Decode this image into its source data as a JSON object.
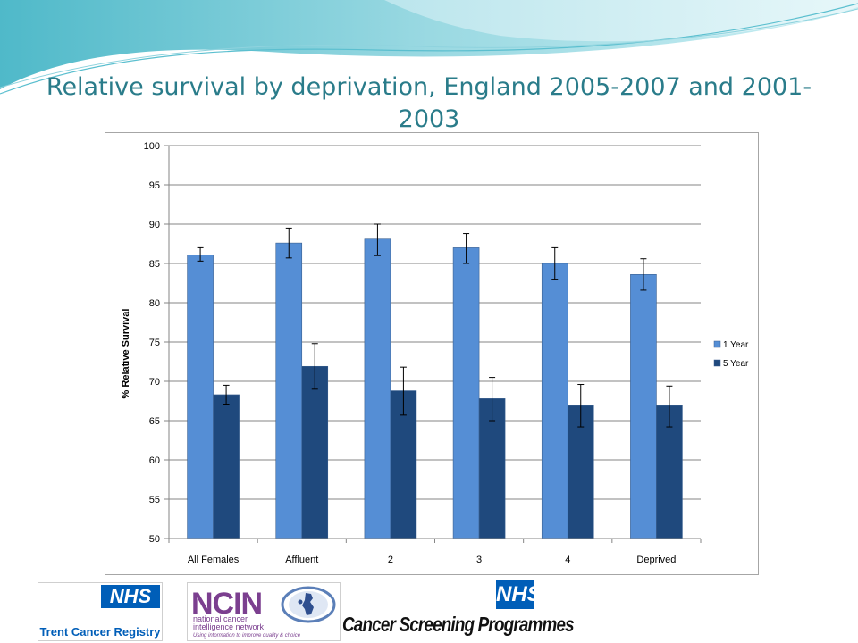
{
  "slide": {
    "title": "Relative survival by deprivation, England 2005-2007 and 2001-2003"
  },
  "logos": {
    "trent_nhs": "NHS",
    "trent_label": "Trent Cancer Registry",
    "ncin_name": "NCIN",
    "ncin_sub1": "national cancer",
    "ncin_sub2": "intelligence network",
    "ncin_tagline": "Using information to improve quality & choice",
    "csp_nhs": "NHS",
    "csp_label": "Cancer Screening Programmes"
  },
  "colors": {
    "title": "#2a7c8a",
    "series_1": "#558ed5",
    "series_2": "#1f497d"
  },
  "chart_data": {
    "type": "bar",
    "title": "",
    "xlabel": "",
    "ylabel": "% Relative Survival",
    "ylim": [
      50,
      100
    ],
    "yticks": [
      50,
      55,
      60,
      65,
      70,
      75,
      80,
      85,
      90,
      95,
      100
    ],
    "grid": true,
    "legend_position": "right",
    "categories": [
      "All Females",
      "Affluent",
      "2",
      "3",
      "4",
      "Deprived"
    ],
    "series": [
      {
        "name": "1 Year",
        "color": "#558ed5",
        "values": [
          86.1,
          87.6,
          88.1,
          87.0,
          85.0,
          83.6
        ],
        "error_low": [
          85.3,
          85.7,
          86.0,
          85.0,
          83.0,
          81.6
        ],
        "error_high": [
          87.0,
          89.5,
          90.0,
          88.8,
          87.0,
          85.6
        ]
      },
      {
        "name": "5 Year",
        "color": "#1f497d",
        "values": [
          68.3,
          71.9,
          68.8,
          67.8,
          66.9,
          66.9
        ],
        "error_low": [
          67.1,
          69.0,
          65.7,
          65.0,
          64.2,
          64.2
        ],
        "error_high": [
          69.5,
          74.8,
          71.8,
          70.5,
          69.6,
          69.4
        ]
      }
    ]
  }
}
